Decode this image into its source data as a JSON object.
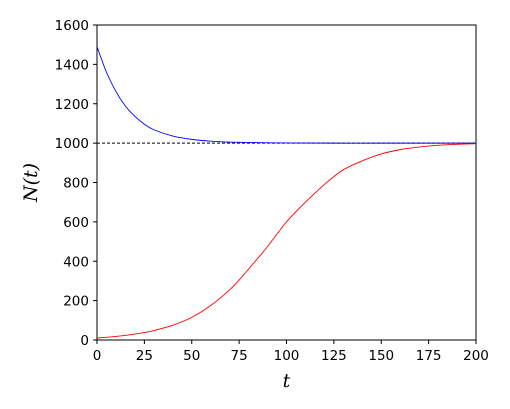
{
  "chart_data": {
    "type": "line",
    "xlabel": "t",
    "ylabel": "N(t)",
    "xlim": [
      0,
      200
    ],
    "ylim": [
      0,
      1600
    ],
    "xticks": [
      0,
      25,
      50,
      75,
      100,
      125,
      150,
      175,
      200
    ],
    "yticks": [
      0,
      200,
      400,
      600,
      800,
      1000,
      1200,
      1400,
      1600
    ],
    "grid": false,
    "legend": "none",
    "reference_line": {
      "y": 1000,
      "style": "dashed",
      "color": "#000000"
    },
    "series": [
      {
        "color": "#0000ff",
        "x": [
          0,
          5,
          10,
          15,
          20,
          25,
          30,
          40,
          50,
          60,
          75,
          100,
          125,
          150,
          175,
          200
        ],
        "y": [
          1490,
          1360,
          1262,
          1188,
          1136,
          1096,
          1068,
          1036,
          1019,
          1010,
          1004,
          1001,
          1000,
          1000,
          1000,
          1000
        ]
      },
      {
        "color": "#ff0000",
        "x": [
          0,
          10,
          20,
          25,
          30,
          40,
          50,
          60,
          70,
          75,
          80,
          90,
          100,
          110,
          120,
          125,
          130,
          140,
          150,
          160,
          170,
          175,
          180,
          190,
          200
        ],
        "y": [
          10,
          18,
          30,
          38,
          48,
          75,
          115,
          175,
          255,
          305,
          360,
          475,
          600,
          700,
          790,
          830,
          865,
          910,
          945,
          967,
          980,
          985,
          989,
          994,
          997
        ]
      }
    ]
  }
}
